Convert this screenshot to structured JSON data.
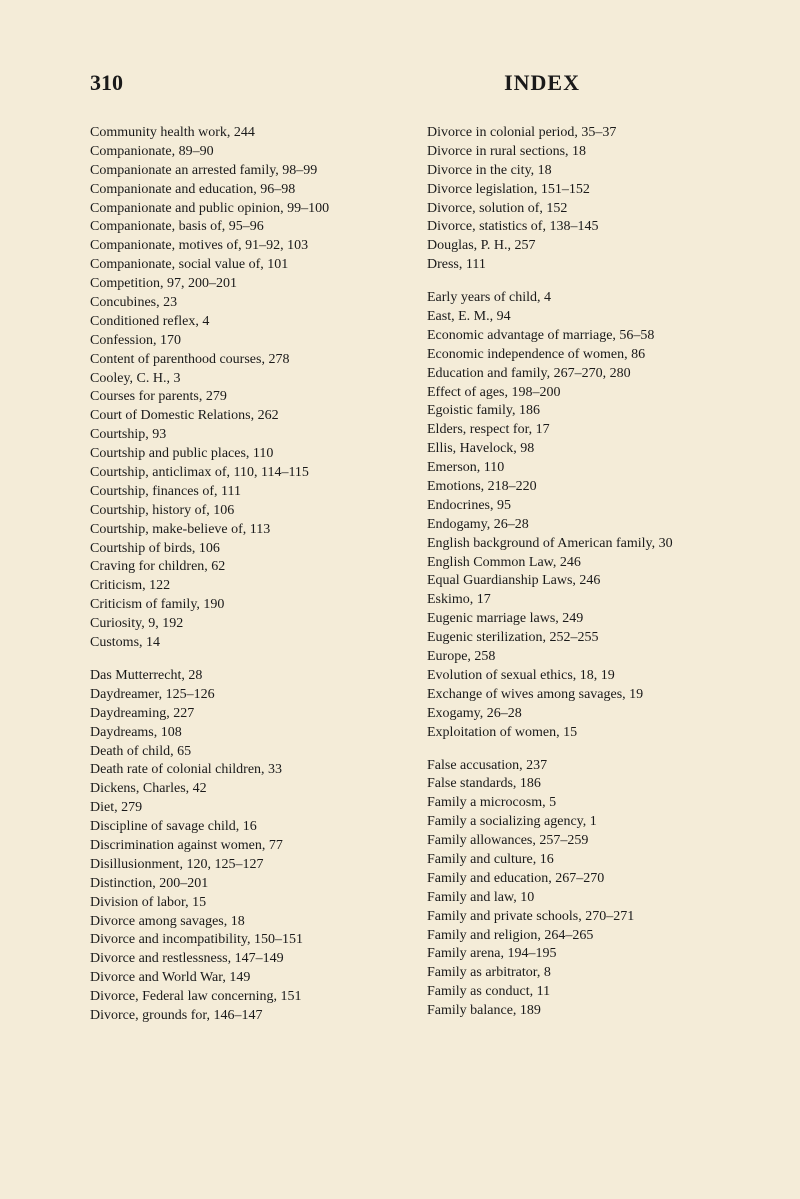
{
  "header": {
    "page_number": "310",
    "title": "INDEX"
  },
  "left_column": [
    "Community health work, 244",
    "Companionate, 89–90",
    "Companionate an arrested family, 98–99",
    "Companionate and education, 96–98",
    "Companionate and public opinion, 99–100",
    "Companionate, basis of, 95–96",
    "Companionate, motives of, 91–92, 103",
    "Companionate, social value of, 101",
    "Competition, 97, 200–201",
    "Concubines, 23",
    "Conditioned reflex, 4",
    "Confession, 170",
    "Content of parenthood courses, 278",
    "Cooley, C. H., 3",
    "Courses for parents, 279",
    "Court of Domestic Relations, 262",
    "Courtship, 93",
    "Courtship and public places, 110",
    "Courtship, anticlimax of, 110, 114–115",
    "Courtship, finances of, 111",
    "Courtship, history of, 106",
    "Courtship, make-believe of, 113",
    "Courtship of birds, 106",
    "Craving for children, 62",
    "Criticism, 122",
    "Criticism of family, 190",
    "Curiosity, 9, 192",
    "Customs, 14",
    "",
    "Das Mutterrecht, 28",
    "Daydreamer, 125–126",
    "Daydreaming, 227",
    "Daydreams, 108",
    "Death of child, 65",
    "Death rate of colonial children, 33",
    "Dickens, Charles, 42",
    "Diet, 279",
    "Discipline of savage child, 16",
    "Discrimination against women, 77",
    "Disillusionment, 120, 125–127",
    "Distinction, 200–201",
    "Division of labor, 15",
    "Divorce among savages, 18",
    "Divorce and incompatibility, 150–151",
    "Divorce and restlessness, 147–149",
    "Divorce and World War, 149",
    "Divorce, Federal law concerning, 151",
    "Divorce, grounds for, 146–147"
  ],
  "right_column": [
    "Divorce in colonial period, 35–37",
    "Divorce in rural sections, 18",
    "Divorce in the city, 18",
    "Divorce legislation, 151–152",
    "Divorce, solution of, 152",
    "Divorce, statistics of, 138–145",
    "Douglas, P. H., 257",
    "Dress, 111",
    "",
    "Early years of child, 4",
    "East, E. M., 94",
    "Economic advantage of marriage, 56–58",
    "Economic independence of women, 86",
    "Education and family, 267–270, 280",
    "Effect of ages, 198–200",
    "Egoistic family, 186",
    "Elders, respect for, 17",
    "Ellis, Havelock, 98",
    "Emerson, 110",
    "Emotions, 218–220",
    "Endocrines, 95",
    "Endogamy, 26–28",
    "English background of American family, 30",
    "English Common Law, 246",
    "Equal Guardianship Laws, 246",
    "Eskimo, 17",
    "Eugenic marriage laws, 249",
    "Eugenic sterilization, 252–255",
    "Europe, 258",
    "Evolution of sexual ethics, 18, 19",
    "Exchange of wives among savages, 19",
    "Exogamy, 26–28",
    "Exploitation of women, 15",
    "",
    "False accusation, 237",
    "False standards, 186",
    "Family a microcosm, 5",
    "Family a socializing agency, 1",
    "Family allowances, 257–259",
    "Family and culture, 16",
    "Family and education, 267–270",
    "Family and law, 10",
    "Family and private schools, 270–271",
    "Family and religion, 264–265",
    "Family arena, 194–195",
    "Family as arbitrator, 8",
    "Family as conduct, 11",
    "Family balance, 189"
  ]
}
